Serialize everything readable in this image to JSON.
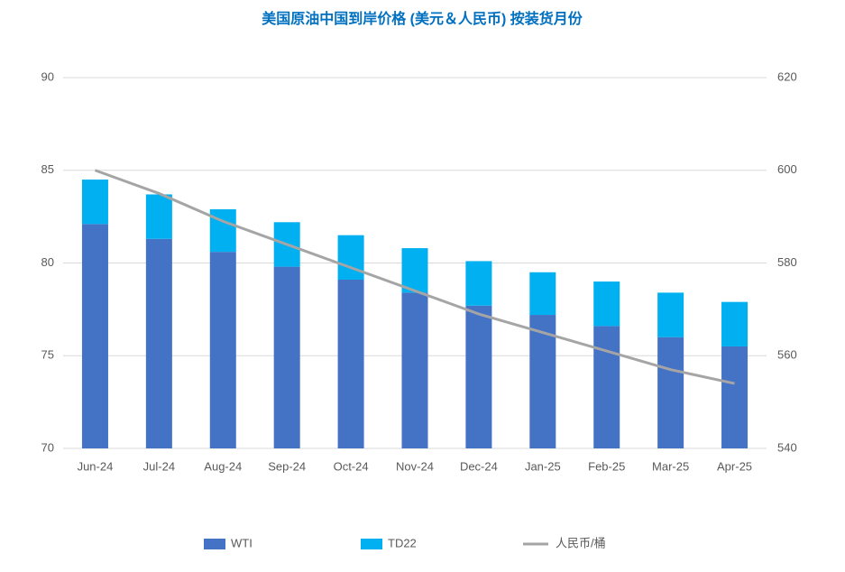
{
  "chart_data": {
    "type": "bar",
    "stacked": true,
    "title": "美国原油中国到岸价格 (美元＆人民币) 按装货月份",
    "categories": [
      "Jun-24",
      "Jul-24",
      "Aug-24",
      "Sep-24",
      "Oct-24",
      "Nov-24",
      "Dec-24",
      "Jan-25",
      "Feb-25",
      "Mar-25",
      "Apr-25"
    ],
    "series": [
      {
        "name": "WTI",
        "color": "#4472c4",
        "values": [
          82.1,
          81.3,
          80.6,
          79.8,
          79.1,
          78.4,
          77.7,
          77.2,
          76.6,
          76.0,
          75.5
        ]
      },
      {
        "name": "TD22",
        "color": "#00b0f0",
        "values": [
          2.4,
          2.4,
          2.3,
          2.4,
          2.4,
          2.4,
          2.4,
          2.3,
          2.4,
          2.4,
          2.4
        ]
      },
      {
        "name": "人民币/桶",
        "color": "#a5a5a5",
        "type": "line",
        "axis": "y2",
        "values": [
          600,
          595,
          589,
          584,
          579,
          574,
          569,
          565,
          561,
          557,
          554
        ]
      }
    ],
    "ylim": [
      70,
      90
    ],
    "yticks": [
      70,
      75,
      80,
      85,
      90
    ],
    "y2lim": [
      540,
      620
    ],
    "y2ticks": [
      540,
      560,
      580,
      600,
      620
    ],
    "grid": true,
    "legend": "bottom"
  }
}
